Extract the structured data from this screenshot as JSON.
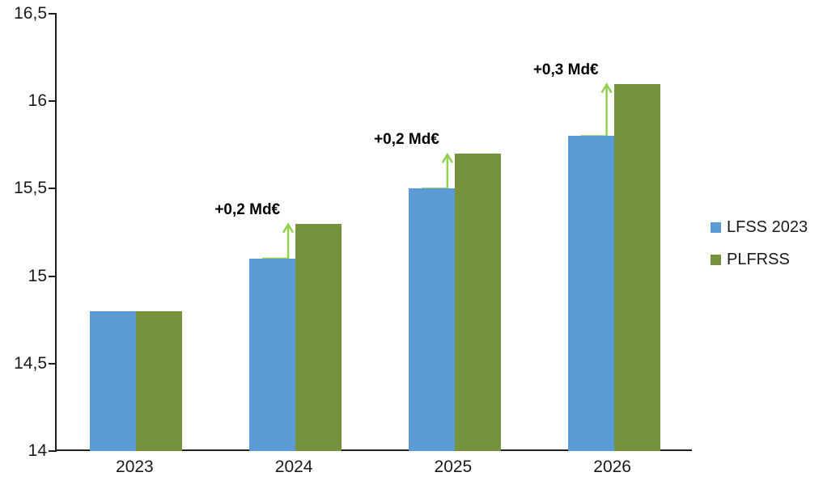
{
  "chart_data": {
    "type": "bar",
    "title": "",
    "xlabel": "",
    "ylabel": "",
    "categories": [
      "2023",
      "2024",
      "2025",
      "2026"
    ],
    "series": [
      {
        "name": "LFSS 2023",
        "color": "#5b9bd5",
        "values": [
          14.8,
          15.1,
          15.5,
          15.8
        ]
      },
      {
        "name": "PLFRSS",
        "color": "#76923d",
        "values": [
          14.8,
          15.3,
          15.7,
          16.1
        ]
      }
    ],
    "annotations": [
      {
        "category": "2024",
        "label": "+0,2 Md€"
      },
      {
        "category": "2025",
        "label": "+0,2 Md€"
      },
      {
        "category": "2026",
        "label": "+0,3 Md€"
      }
    ],
    "ylim": [
      14,
      16.5
    ],
    "ytick_step": 0.5,
    "ytick_labels": [
      "14",
      "14,5",
      "15",
      "15,5",
      "16",
      "16,5"
    ],
    "arrow_color": "#92d050",
    "axis_color": "#1f1f1f",
    "grid": false,
    "legend_position": "right"
  }
}
